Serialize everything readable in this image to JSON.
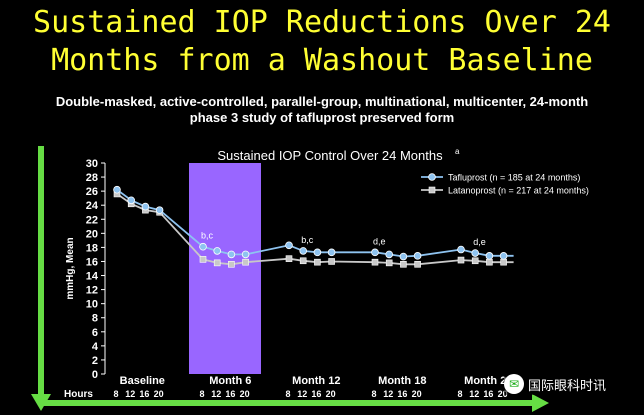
{
  "slide": {
    "title_line1": "Sustained IOP Reductions Over 24",
    "title_line2": "Months from a Washout Baseline",
    "subtitle_line1": "Double-masked, active-controlled, parallel-group, multinational, multicenter, 24-month",
    "subtitle_line2": "phase 3 study of tafluprost preserved form",
    "watermark_text": "国际眼科时讯"
  },
  "colors": {
    "title": "#ffff33",
    "tafluprost": "#8ec3f0",
    "latanoprost": "#c8c8c8",
    "highlight": "#9966ff",
    "arrow": "#66dd44",
    "text": "#ffffff"
  },
  "chart_data": {
    "type": "line",
    "title": "Sustained IOP Control Over 24 Months",
    "title_superscript": "a",
    "ylabel": "mmHg, Mean",
    "ylim": [
      0,
      30
    ],
    "yticks": [
      0,
      2,
      4,
      6,
      8,
      10,
      12,
      14,
      16,
      18,
      20,
      22,
      24,
      26,
      28,
      30
    ],
    "hours_label": "Hours",
    "visits": [
      {
        "name": "Baseline",
        "hours": [
          "8",
          "12",
          "16",
          "20"
        ]
      },
      {
        "name": "Month 6",
        "hours": [
          "8",
          "12",
          "16",
          "20"
        ]
      },
      {
        "name": "Month 12",
        "hours": [
          "8",
          "12",
          "16",
          "20"
        ]
      },
      {
        "name": "Month 18",
        "hours": [
          "8",
          "12",
          "16",
          "20"
        ]
      },
      {
        "name": "Month 24",
        "hours": [
          "8",
          "12",
          "16",
          "20"
        ]
      }
    ],
    "highlight_visit": "Month 6",
    "series": [
      {
        "name": "Tafluprost (n = 185 at 24 months)",
        "marker": "circle",
        "values": [
          [
            26.2,
            24.7,
            23.8,
            23.3
          ],
          [
            18.1,
            17.5,
            17.0,
            17.0
          ],
          [
            18.3,
            17.5,
            17.3,
            17.3
          ],
          [
            17.3,
            17.0,
            16.7,
            16.8
          ],
          [
            17.7,
            17.2,
            16.8,
            16.8
          ]
        ]
      },
      {
        "name": "Latanoprost (n = 217 at 24 months)",
        "marker": "square",
        "values": [
          [
            25.6,
            24.2,
            23.3,
            23.0
          ],
          [
            16.3,
            15.8,
            15.6,
            15.9
          ],
          [
            16.4,
            16.1,
            15.9,
            16.0
          ],
          [
            15.9,
            15.8,
            15.6,
            15.6
          ],
          [
            16.2,
            16.1,
            15.9,
            15.9
          ]
        ]
      }
    ],
    "annotations": [
      {
        "visit": 1,
        "hour": 0,
        "text": "b,c"
      },
      {
        "visit": 2,
        "hour": 1,
        "text": "b,c"
      },
      {
        "visit": 3,
        "hour": 0,
        "text": "d,e"
      },
      {
        "visit": 4,
        "hour": 1,
        "text": "d,e"
      }
    ],
    "legend": "top-right",
    "grid": false
  }
}
